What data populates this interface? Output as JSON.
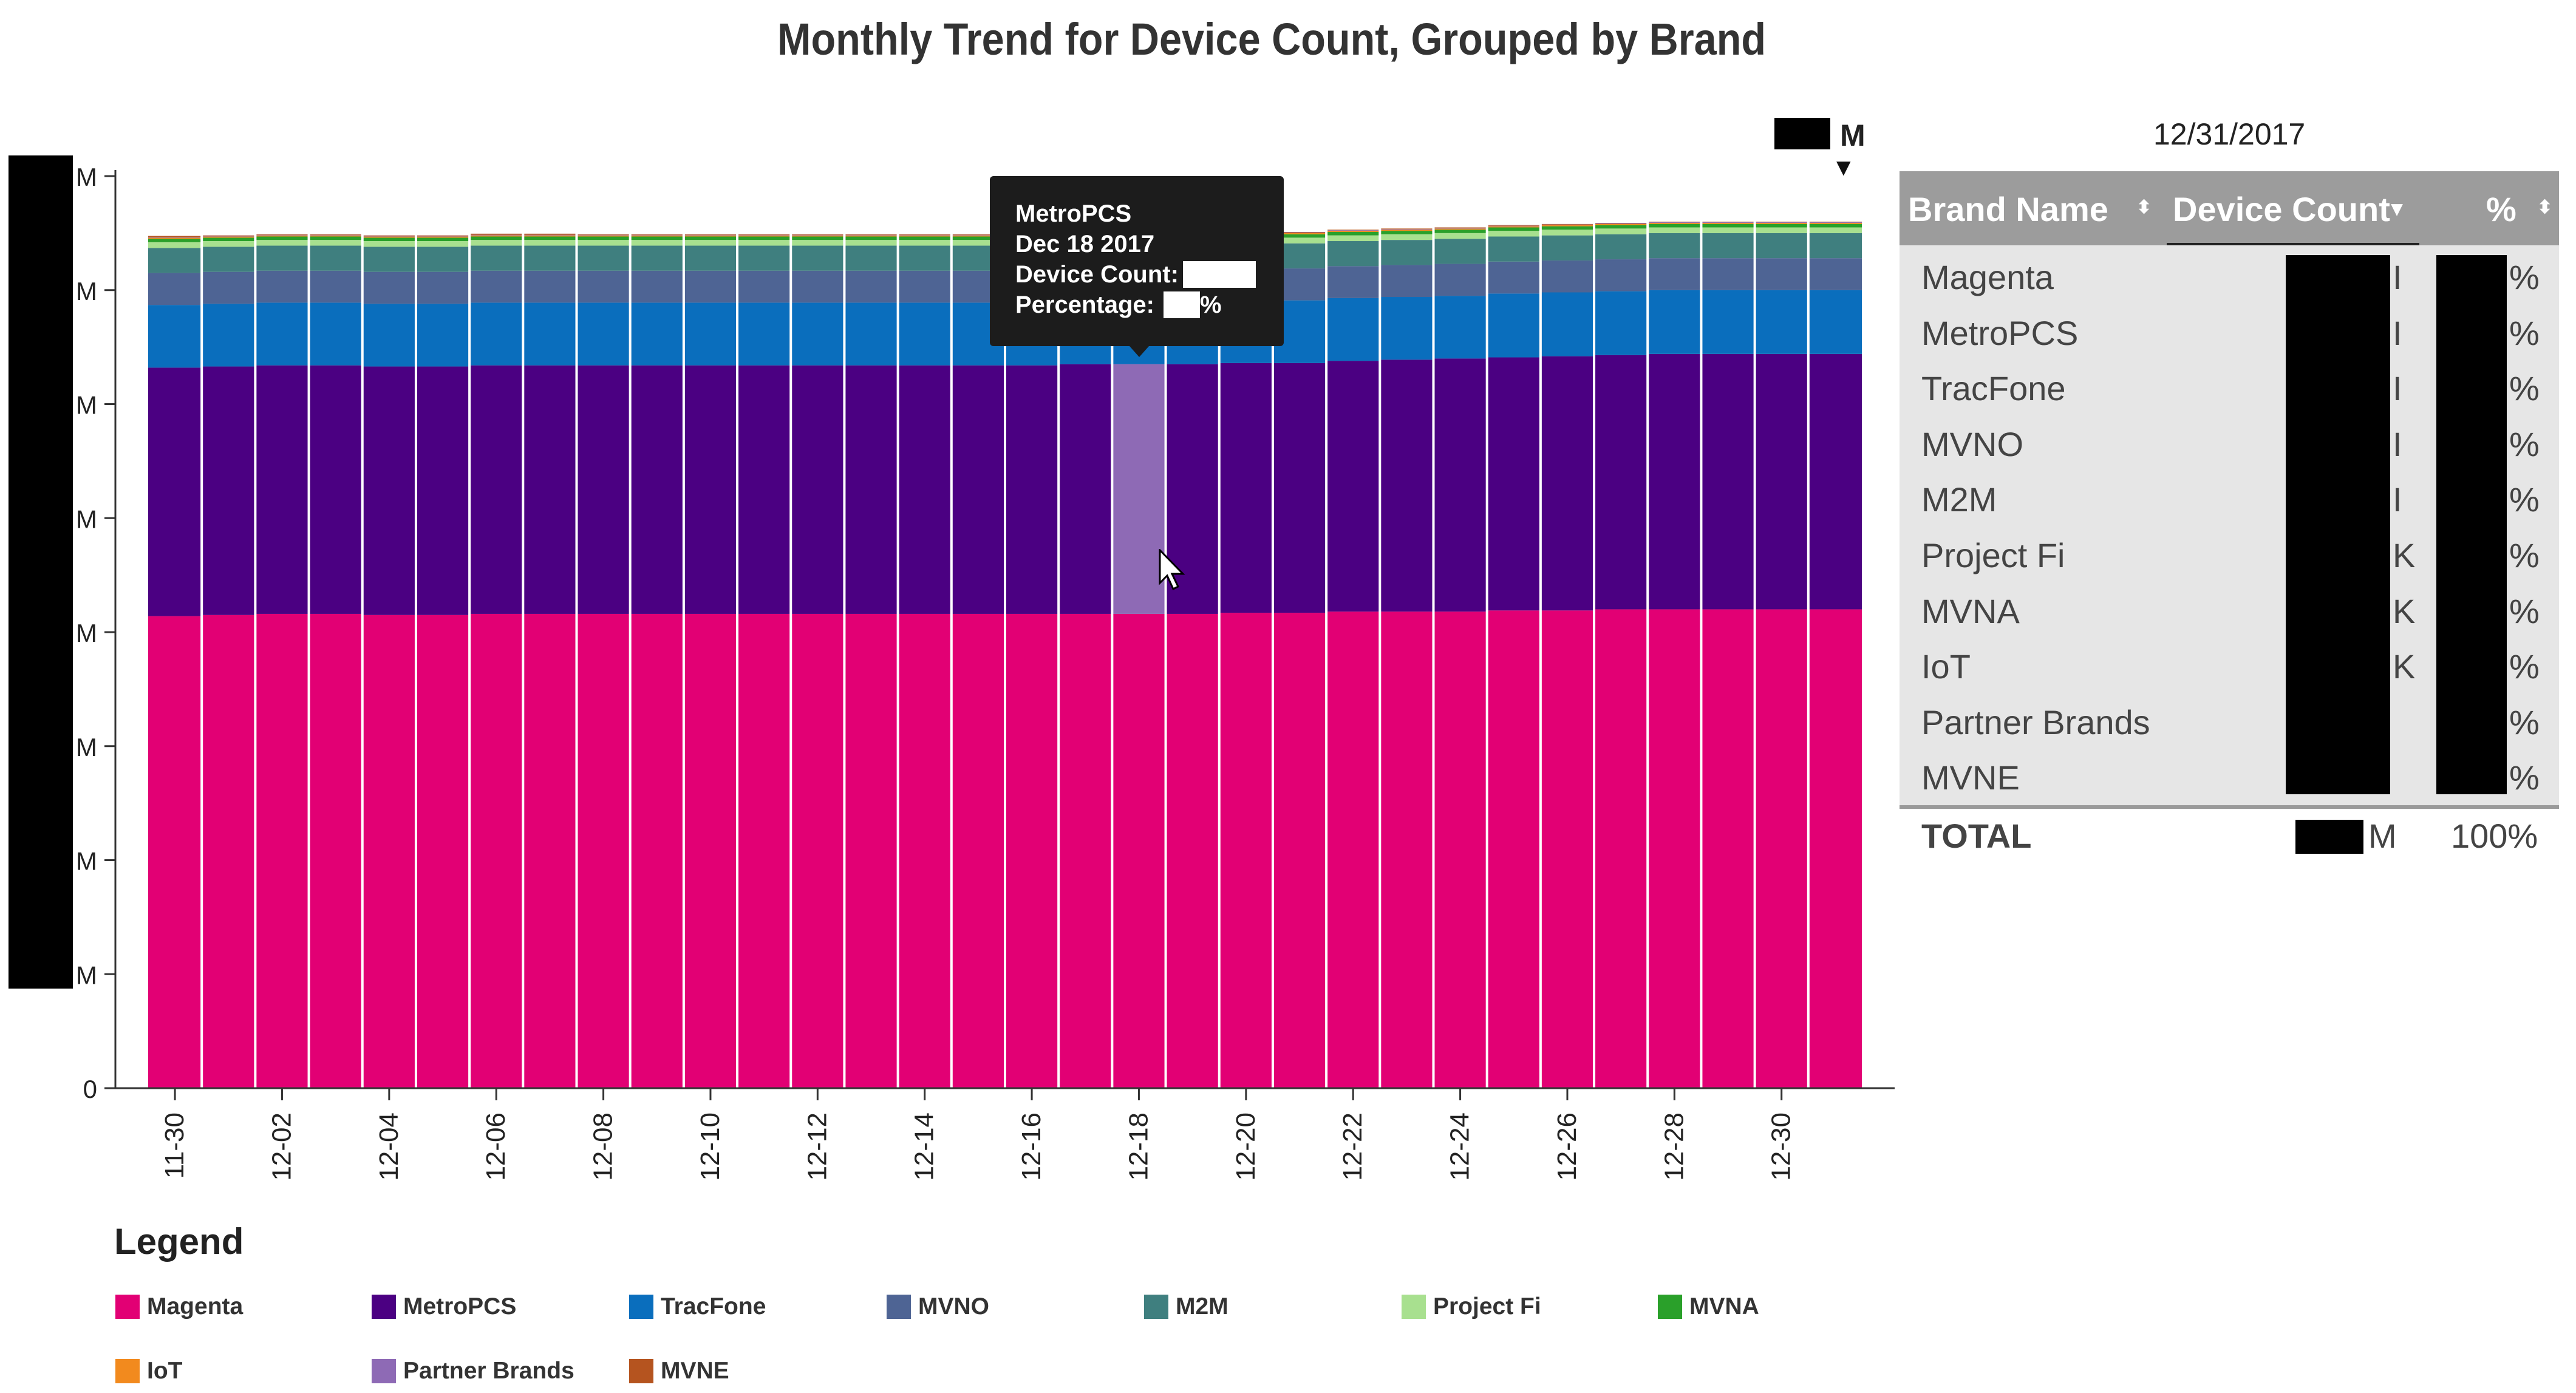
{
  "page": {
    "title": "Monthly Trend for Device Count, Grouped by Brand"
  },
  "units_selector": {
    "label": "M",
    "arrow": "▼"
  },
  "legend": {
    "title": "Legend",
    "items": [
      {
        "label": "Magenta",
        "color": "#e20074"
      },
      {
        "label": "MetroPCS",
        "color": "#4b0082"
      },
      {
        "label": "TracFone",
        "color": "#0a6ebd"
      },
      {
        "label": "MVNO",
        "color": "#4e6494"
      },
      {
        "label": "M2M",
        "color": "#3f7f7f"
      },
      {
        "label": "Project Fi",
        "color": "#a8e08f"
      },
      {
        "label": "MVNA",
        "color": "#2aa02a"
      },
      {
        "label": "IoT",
        "color": "#f28a1e"
      },
      {
        "label": "Partner Brands",
        "color": "#8e6ab5"
      },
      {
        "label": "MVNE",
        "color": "#b5541f"
      }
    ]
  },
  "tooltip": {
    "brand": "MetroPCS",
    "date": "Dec 18 2017",
    "count_label": "Device Count:",
    "count_unit": "M",
    "pct_label": "Percentage:",
    "pct_unit": "%"
  },
  "table": {
    "date": "12/31/2017",
    "headers": {
      "brand": "Brand Name",
      "count": "Device Count",
      "pct": "%"
    },
    "sort_icons": {
      "brand": "⬍",
      "count": "▾",
      "pct": "⬍"
    },
    "rows": [
      {
        "brand": "Magenta",
        "count_tail": "I",
        "pct": "%"
      },
      {
        "brand": "MetroPCS",
        "count_tail": "I",
        "pct": "%"
      },
      {
        "brand": "TracFone",
        "count_tail": "I",
        "pct": "%"
      },
      {
        "brand": "MVNO",
        "count_tail": "I",
        "pct": "%"
      },
      {
        "brand": "M2M",
        "count_tail": "I",
        "pct": "%"
      },
      {
        "brand": "Project Fi",
        "count_tail": "K",
        "pct": "%"
      },
      {
        "brand": "MVNA",
        "count_tail": "K",
        "pct": "%"
      },
      {
        "brand": "IoT",
        "count_tail": "K",
        "pct": "%"
      },
      {
        "brand": "Partner Brands",
        "count_tail": "",
        "pct": "%"
      },
      {
        "brand": "MVNE",
        "count_tail": "",
        "pct": "%"
      }
    ],
    "total": {
      "label": "TOTAL",
      "unit": "M",
      "pct": "100%"
    }
  },
  "chart_data": {
    "type": "bar",
    "stacked": true,
    "title": "Monthly Trend for Device Count, Grouped by Brand",
    "y_tick_labels": [
      "0",
      "M",
      "M",
      "M",
      "M",
      "M",
      "M",
      "M",
      "M"
    ],
    "x_tick_labels": [
      "11-30",
      "12-02",
      "12-04",
      "12-06",
      "12-08",
      "12-10",
      "12-12",
      "12-14",
      "12-16",
      "12-18",
      "12-20",
      "12-22",
      "12-24",
      "12-26",
      "12-28",
      "12-30"
    ],
    "categories": [
      "11-30",
      "12-01",
      "12-02",
      "12-03",
      "12-04",
      "12-05",
      "12-06",
      "12-07",
      "12-08",
      "12-09",
      "12-10",
      "12-11",
      "12-12",
      "12-13",
      "12-14",
      "12-15",
      "12-16",
      "12-17",
      "12-18",
      "12-19",
      "12-20",
      "12-21",
      "12-22",
      "12-23",
      "12-24",
      "12-25",
      "12-26",
      "12-27",
      "12-28",
      "12-29",
      "12-30",
      "12-31"
    ],
    "ylim": [
      0,
      8
    ],
    "highlight": {
      "series": "MetroPCS",
      "category": "12-18",
      "color": "#8e6ab5"
    },
    "series": [
      {
        "name": "Magenta",
        "color": "#e20074",
        "values": [
          4.14,
          4.15,
          4.16,
          4.16,
          4.15,
          4.15,
          4.16,
          4.16,
          4.16,
          4.16,
          4.16,
          4.16,
          4.16,
          4.16,
          4.16,
          4.16,
          4.16,
          4.16,
          4.16,
          4.16,
          4.17,
          4.17,
          4.18,
          4.18,
          4.18,
          4.19,
          4.19,
          4.2,
          4.2,
          4.2,
          4.2,
          4.2
        ]
      },
      {
        "name": "MetroPCS",
        "color": "#4b0082",
        "values": [
          2.18,
          2.18,
          2.18,
          2.18,
          2.18,
          2.18,
          2.18,
          2.18,
          2.18,
          2.18,
          2.18,
          2.18,
          2.18,
          2.18,
          2.18,
          2.18,
          2.18,
          2.19,
          2.19,
          2.19,
          2.19,
          2.19,
          2.2,
          2.21,
          2.22,
          2.22,
          2.23,
          2.23,
          2.24,
          2.24,
          2.24,
          2.24
        ]
      },
      {
        "name": "TracFone",
        "color": "#0a6ebd",
        "values": [
          0.55,
          0.55,
          0.55,
          0.55,
          0.55,
          0.55,
          0.55,
          0.55,
          0.55,
          0.55,
          0.55,
          0.55,
          0.55,
          0.55,
          0.55,
          0.55,
          0.55,
          0.55,
          0.55,
          0.55,
          0.55,
          0.55,
          0.55,
          0.55,
          0.55,
          0.56,
          0.56,
          0.56,
          0.56,
          0.56,
          0.56,
          0.56
        ]
      },
      {
        "name": "MVNO",
        "color": "#4e6494",
        "values": [
          0.28,
          0.28,
          0.28,
          0.28,
          0.28,
          0.28,
          0.28,
          0.28,
          0.28,
          0.28,
          0.28,
          0.28,
          0.28,
          0.28,
          0.28,
          0.28,
          0.28,
          0.28,
          0.28,
          0.28,
          0.28,
          0.28,
          0.28,
          0.28,
          0.28,
          0.28,
          0.28,
          0.28,
          0.28,
          0.28,
          0.28,
          0.28
        ]
      },
      {
        "name": "M2M",
        "color": "#3f7f7f",
        "values": [
          0.22,
          0.22,
          0.22,
          0.22,
          0.22,
          0.22,
          0.22,
          0.22,
          0.22,
          0.22,
          0.22,
          0.22,
          0.22,
          0.22,
          0.22,
          0.22,
          0.22,
          0.22,
          0.22,
          0.22,
          0.22,
          0.22,
          0.22,
          0.22,
          0.22,
          0.22,
          0.22,
          0.22,
          0.22,
          0.22,
          0.22,
          0.22
        ]
      },
      {
        "name": "Project Fi",
        "color": "#a8e08f",
        "values": [
          0.05,
          0.05,
          0.05,
          0.05,
          0.05,
          0.05,
          0.05,
          0.05,
          0.05,
          0.05,
          0.05,
          0.05,
          0.05,
          0.05,
          0.05,
          0.05,
          0.05,
          0.05,
          0.05,
          0.05,
          0.05,
          0.05,
          0.05,
          0.05,
          0.05,
          0.05,
          0.05,
          0.05,
          0.05,
          0.05,
          0.05,
          0.05
        ]
      },
      {
        "name": "MVNA",
        "color": "#2aa02a",
        "values": [
          0.03,
          0.03,
          0.03,
          0.03,
          0.03,
          0.03,
          0.03,
          0.03,
          0.03,
          0.03,
          0.03,
          0.03,
          0.03,
          0.03,
          0.03,
          0.03,
          0.03,
          0.03,
          0.03,
          0.03,
          0.03,
          0.03,
          0.03,
          0.03,
          0.03,
          0.03,
          0.03,
          0.03,
          0.03,
          0.03,
          0.03,
          0.03
        ]
      },
      {
        "name": "IoT",
        "color": "#f28a1e",
        "values": [
          0.01,
          0.01,
          0.01,
          0.01,
          0.01,
          0.01,
          0.01,
          0.01,
          0.01,
          0.01,
          0.01,
          0.01,
          0.01,
          0.01,
          0.01,
          0.01,
          0.01,
          0.01,
          0.01,
          0.01,
          0.01,
          0.01,
          0.01,
          0.01,
          0.01,
          0.01,
          0.01,
          0.01,
          0.01,
          0.01,
          0.01,
          0.01
        ]
      },
      {
        "name": "Partner Brands",
        "color": "#8e6ab5",
        "values": [
          0.005,
          0.005,
          0.005,
          0.005,
          0.005,
          0.005,
          0.005,
          0.005,
          0.005,
          0.005,
          0.005,
          0.005,
          0.005,
          0.005,
          0.005,
          0.005,
          0.005,
          0.005,
          0.005,
          0.005,
          0.005,
          0.005,
          0.005,
          0.005,
          0.005,
          0.005,
          0.005,
          0.005,
          0.005,
          0.005,
          0.005,
          0.005
        ]
      },
      {
        "name": "MVNE",
        "color": "#b5541f",
        "values": [
          0.01,
          0.005,
          0.005,
          0.005,
          0.005,
          0.005,
          0.01,
          0.01,
          0.005,
          0.005,
          0.005,
          0.005,
          0.005,
          0.005,
          0.005,
          0.005,
          0.005,
          0.005,
          0.005,
          0.005,
          0.005,
          0.005,
          0.005,
          0.005,
          0.005,
          0.005,
          0.005,
          0.005,
          0.005,
          0.005,
          0.005,
          0.005
        ]
      }
    ]
  }
}
